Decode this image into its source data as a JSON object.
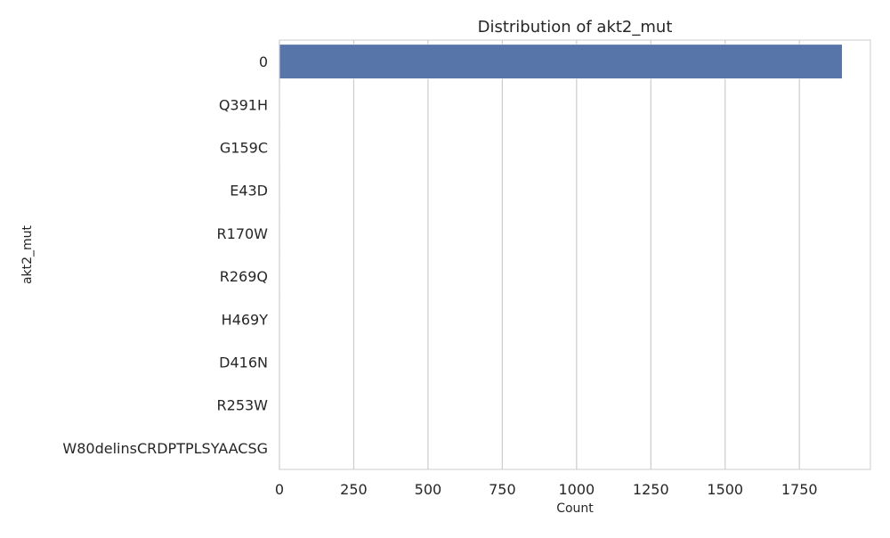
{
  "chart_data": {
    "type": "bar",
    "orientation": "horizontal",
    "title": "Distribution of akt2_mut",
    "xlabel": "Count",
    "ylabel": "akt2_mut",
    "categories": [
      "0",
      "Q391H",
      "G159C",
      "E43D",
      "R170W",
      "R269Q",
      "H469Y",
      "D416N",
      "R253W",
      "W80delinsCRDPTPLSYAACSG"
    ],
    "values": [
      1894,
      1,
      1,
      1,
      1,
      1,
      1,
      1,
      1,
      1
    ],
    "xlim": [
      0,
      1989
    ],
    "xticks": [
      0,
      250,
      500,
      750,
      1000,
      1250,
      1500,
      1750
    ],
    "grid": true,
    "bar_color": "#5875a9",
    "grid_color": "#cccccc",
    "spine_color": "#cccccc"
  }
}
